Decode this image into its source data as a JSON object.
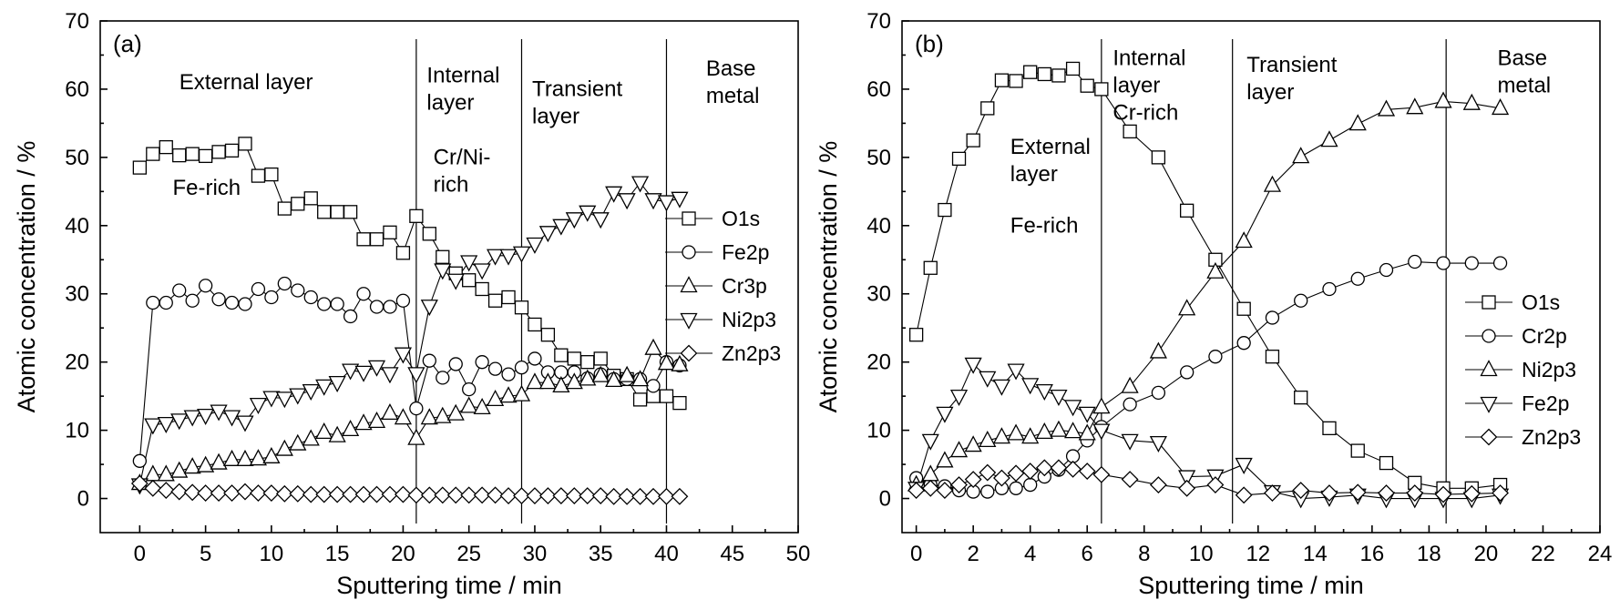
{
  "chart_data": [
    {
      "type": "line",
      "panel_label": "(a)",
      "xlabel": "Sputtering time / min",
      "ylabel": "Atomic concentration / %",
      "xlim": [
        -3,
        50
      ],
      "ylim": [
        -5,
        70
      ],
      "xticks": [
        0,
        5,
        10,
        15,
        20,
        25,
        30,
        35,
        40,
        45,
        50
      ],
      "yticks": [
        0,
        10,
        20,
        30,
        40,
        50,
        60,
        70
      ],
      "grid": false,
      "legend_position": "right",
      "boundaries": [
        21,
        29,
        40
      ],
      "annotations": [
        {
          "lines": [
            "External layer"
          ],
          "x": 3,
          "y": 60
        },
        {
          "lines": [
            "Fe-rich"
          ],
          "x": 2.5,
          "y": 44.5
        },
        {
          "lines": [
            "Internal",
            "layer"
          ],
          "x": 21.8,
          "y": 61
        },
        {
          "lines": [
            "Cr/Ni-",
            "rich"
          ],
          "x": 22.3,
          "y": 49
        },
        {
          "lines": [
            "Transient",
            "layer"
          ],
          "x": 29.8,
          "y": 59
        },
        {
          "lines": [
            "Base",
            "metal"
          ],
          "x": 43,
          "y": 62
        }
      ],
      "series": [
        {
          "name": "O1s",
          "marker": "square",
          "x": [
            0,
            1,
            2,
            3,
            4,
            5,
            6,
            7,
            8,
            9,
            10,
            11,
            12,
            13,
            14,
            15,
            16,
            17,
            18,
            19,
            20,
            21,
            22,
            23,
            24,
            25,
            26,
            27,
            28,
            29,
            30,
            31,
            32,
            33,
            34,
            35,
            36,
            37,
            38,
            39,
            40,
            41
          ],
          "y": [
            48.5,
            50.5,
            51.5,
            50.3,
            50.5,
            50.2,
            50.8,
            51,
            52,
            47.3,
            47.5,
            42.5,
            43.2,
            44,
            42,
            42,
            42,
            38,
            38,
            39,
            36,
            41.4,
            38.8,
            35.4,
            33,
            32,
            30.7,
            29,
            29.5,
            28,
            25.5,
            24,
            21,
            20.5,
            20,
            20.5,
            18,
            17.5,
            14.5,
            15,
            15,
            14
          ]
        },
        {
          "name": "Fe2p",
          "marker": "circle",
          "x": [
            0,
            1,
            2,
            3,
            4,
            5,
            6,
            7,
            8,
            9,
            10,
            11,
            12,
            13,
            14,
            15,
            16,
            17,
            18,
            19,
            20,
            21,
            22,
            23,
            24,
            25,
            26,
            27,
            28,
            29,
            30,
            31,
            32,
            33,
            34,
            35,
            36,
            37,
            38,
            39,
            40,
            41
          ],
          "y": [
            5.5,
            28.7,
            28.7,
            30.5,
            29,
            31.2,
            29.2,
            28.7,
            28.5,
            30.7,
            29.5,
            31.5,
            30.5,
            29.5,
            28.5,
            28.5,
            26.7,
            30,
            28.1,
            28.1,
            29,
            13.2,
            20.2,
            17.7,
            19.7,
            16,
            20,
            19,
            18.2,
            19.2,
            20.5,
            18.5,
            18.5,
            18.5,
            17.6,
            18.2,
            17.5,
            17.5,
            17.5,
            16.5,
            20,
            19.5
          ]
        },
        {
          "name": "Cr3p",
          "marker": "triangle-up",
          "x": [
            0,
            1,
            2,
            3,
            4,
            5,
            6,
            7,
            8,
            9,
            10,
            11,
            12,
            13,
            14,
            15,
            16,
            17,
            18,
            19,
            20,
            21,
            22,
            23,
            24,
            25,
            26,
            27,
            28,
            29,
            30,
            31,
            32,
            33,
            34,
            35,
            36,
            37,
            38,
            39,
            40,
            41
          ],
          "y": [
            2.2,
            3.5,
            3.5,
            4,
            4.6,
            4.8,
            5.2,
            5.7,
            5.7,
            5.8,
            6.1,
            7.2,
            8,
            8.7,
            9.7,
            9.2,
            10.1,
            11,
            11.3,
            12.5,
            11.8,
            8.8,
            11.8,
            12,
            12.4,
            13.5,
            13.3,
            14.5,
            15,
            15.2,
            17,
            17,
            16.5,
            17,
            17.5,
            18,
            17.3,
            18,
            17.4,
            22,
            19.8,
            19.6
          ]
        },
        {
          "name": "Ni2p3",
          "marker": "triangle-down",
          "x": [
            0,
            1,
            2,
            3,
            4,
            5,
            6,
            7,
            8,
            9,
            10,
            11,
            12,
            13,
            14,
            15,
            16,
            17,
            18,
            19,
            20,
            21,
            22,
            23,
            24,
            25,
            26,
            27,
            28,
            29,
            30,
            31,
            32,
            33,
            34,
            35,
            36,
            37,
            38,
            39,
            40,
            41
          ],
          "y": [
            2,
            10.8,
            11,
            11.5,
            12,
            12.2,
            12.8,
            12,
            11.2,
            13.8,
            14.8,
            14.7,
            15.2,
            15.8,
            16.5,
            17,
            18.8,
            18.5,
            19.3,
            18.3,
            21.2,
            18.3,
            28.2,
            33.5,
            32,
            34.7,
            33.5,
            35.6,
            35.6,
            36,
            37.3,
            39,
            40,
            41,
            42,
            41,
            44.8,
            43.8,
            46.3,
            43.8,
            43.5,
            44
          ]
        },
        {
          "name": "Zn2p3",
          "marker": "diamond",
          "x": [
            0,
            1,
            2,
            3,
            4,
            5,
            6,
            7,
            8,
            9,
            10,
            11,
            12,
            13,
            14,
            15,
            16,
            17,
            18,
            19,
            20,
            21,
            22,
            23,
            24,
            25,
            26,
            27,
            28,
            29,
            30,
            31,
            32,
            33,
            34,
            35,
            36,
            37,
            38,
            39,
            40,
            41
          ],
          "y": [
            2.2,
            1.5,
            1.2,
            1,
            0.9,
            0.8,
            0.8,
            0.8,
            1,
            0.8,
            0.8,
            0.7,
            0.7,
            0.6,
            0.6,
            0.6,
            0.6,
            0.6,
            0.6,
            0.6,
            0.6,
            0.5,
            0.5,
            0.5,
            0.5,
            0.5,
            0.5,
            0.5,
            0.4,
            0.4,
            0.4,
            0.4,
            0.4,
            0.4,
            0.4,
            0.4,
            0.3,
            0.3,
            0.3,
            0.3,
            0.3,
            0.3
          ]
        }
      ]
    },
    {
      "type": "line",
      "panel_label": "(b)",
      "xlabel": "Sputtering time / min",
      "ylabel": "Atomic concentration / %",
      "xlim": [
        -0.5,
        24
      ],
      "ylim": [
        -5,
        70
      ],
      "xticks": [
        0,
        2,
        4,
        6,
        8,
        10,
        12,
        14,
        16,
        18,
        20,
        22,
        24
      ],
      "yticks": [
        0,
        10,
        20,
        30,
        40,
        50,
        60,
        70
      ],
      "grid": false,
      "legend_position": "right",
      "boundaries": [
        6.5,
        11.1,
        18.6
      ],
      "annotations": [
        {
          "lines": [
            "External",
            "layer"
          ],
          "x": 3.3,
          "y": 50.5
        },
        {
          "lines": [
            "Fe-rich"
          ],
          "x": 3.3,
          "y": 39
        },
        {
          "lines": [
            "Internal",
            "layer",
            "Cr-rich"
          ],
          "x": 6.9,
          "y": 63.5
        },
        {
          "lines": [
            "Transient",
            "layer"
          ],
          "x": 11.6,
          "y": 62.5
        },
        {
          "lines": [
            "Base",
            "metal"
          ],
          "x": 20.4,
          "y": 63.5
        }
      ],
      "series": [
        {
          "name": "O1s",
          "marker": "square",
          "x": [
            0,
            0.5,
            1,
            1.5,
            2,
            2.5,
            3,
            3.5,
            4,
            4.5,
            5,
            5.5,
            6,
            6.5,
            7.5,
            8.5,
            9.5,
            10.5,
            11.5,
            12.5,
            13.5,
            14.5,
            15.5,
            16.5,
            17.5,
            18.5,
            19.5,
            20.5
          ],
          "y": [
            24,
            33.8,
            42.3,
            49.8,
            52.5,
            57.2,
            61.3,
            61.2,
            62.5,
            62.2,
            62,
            63,
            60.5,
            60,
            53.8,
            50,
            42.2,
            35,
            27.8,
            20.8,
            14.8,
            10.3,
            7,
            5.2,
            2.3,
            1.5,
            1.5,
            2
          ]
        },
        {
          "name": "Cr2p",
          "marker": "circle",
          "x": [
            0,
            0.5,
            1,
            1.5,
            2,
            2.5,
            3,
            3.5,
            4,
            4.5,
            5,
            5.5,
            6,
            6.5,
            7.5,
            8.5,
            9.5,
            10.5,
            11.5,
            12.5,
            13.5,
            14.5,
            15.5,
            16.5,
            17.5,
            18.5,
            19.5,
            20.5
          ],
          "y": [
            3,
            2,
            1.8,
            1.2,
            1,
            1,
            1.5,
            1.5,
            2,
            3.2,
            4.2,
            6.2,
            8.5,
            10.5,
            13.8,
            15.5,
            18.5,
            20.8,
            22.8,
            26.5,
            29,
            30.7,
            32.2,
            33.5,
            34.7,
            34.5,
            34.5,
            34.5
          ]
        },
        {
          "name": "Ni2p3",
          "marker": "triangle-up",
          "x": [
            0,
            0.5,
            1,
            1.5,
            2,
            2.5,
            3,
            3.5,
            4,
            4.5,
            5,
            5.5,
            6,
            6.5,
            7.5,
            8.5,
            9.5,
            10.5,
            11.5,
            12.5,
            13.5,
            14.5,
            15.5,
            16.5,
            17.5,
            18.5,
            19.5,
            20.5
          ],
          "y": [
            2,
            3.5,
            5.5,
            7,
            7.8,
            8.5,
            9,
            9.5,
            9,
            9.7,
            10,
            9.8,
            9.5,
            13.4,
            16.4,
            21.5,
            27.8,
            33.2,
            37.7,
            45.9,
            50.1,
            52.5,
            54.9,
            57,
            57.3,
            58.2,
            57.9,
            57.2
          ]
        },
        {
          "name": "Fe2p",
          "marker": "triangle-down",
          "x": [
            0,
            0.5,
            1,
            1.5,
            2,
            2.5,
            3,
            3.5,
            4,
            4.5,
            5,
            5.5,
            6,
            6.5,
            7.5,
            8.5,
            9.5,
            10.5,
            11.5,
            12.5,
            13.5,
            14.5,
            15.5,
            16.5,
            17.5,
            18.5,
            19.5,
            20.5
          ],
          "y": [
            1.5,
            8.5,
            12.5,
            15,
            19.7,
            17.7,
            16.5,
            18.8,
            16.7,
            15.8,
            15,
            13.5,
            12.5,
            10,
            8.5,
            8.2,
            3.2,
            3.3,
            5,
            1,
            0,
            0.2,
            0.5,
            0,
            0,
            0,
            0,
            0.5
          ]
        },
        {
          "name": "Zn2p3",
          "marker": "diamond",
          "x": [
            0,
            0.5,
            1,
            1.5,
            2,
            2.5,
            3,
            3.5,
            4,
            4.5,
            5,
            5.5,
            6,
            6.5,
            7.5,
            8.5,
            9.5,
            10.5,
            11.5,
            12.5,
            13.5,
            14.5,
            15.5,
            16.5,
            17.5,
            18.5,
            19.5,
            20.5
          ],
          "y": [
            1.2,
            1.5,
            1.2,
            2,
            2.8,
            3.8,
            3,
            3.7,
            4,
            4.5,
            4.5,
            4.3,
            4,
            3.5,
            2.8,
            2,
            1.5,
            2,
            0.5,
            0.8,
            1.2,
            0.8,
            0.9,
            0.8,
            0.8,
            0.6,
            0.7,
            0.8
          ]
        }
      ]
    }
  ]
}
